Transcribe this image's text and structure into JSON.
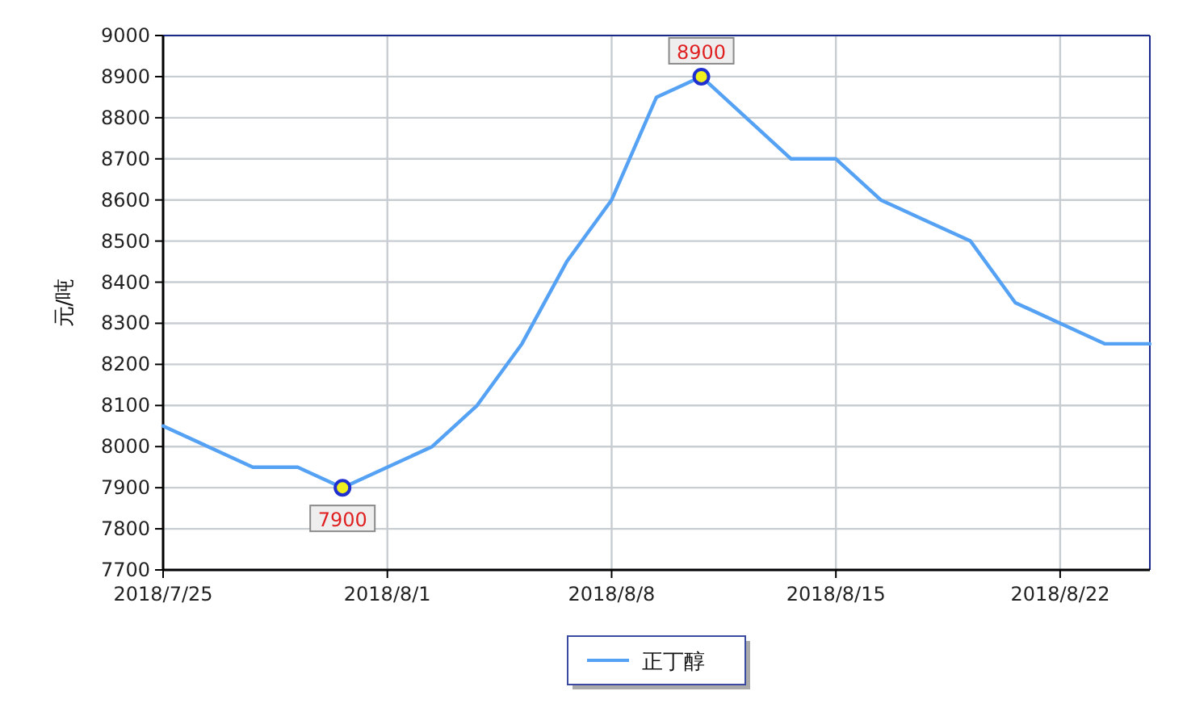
{
  "chart_data": {
    "type": "line",
    "ylabel": "元/吨",
    "categories": [
      "2018/7/25",
      null,
      null,
      null,
      null,
      "2018/8/1",
      null,
      null,
      null,
      null,
      "2018/8/8",
      null,
      null,
      null,
      null,
      "2018/8/15",
      null,
      null,
      null,
      null,
      "2018/8/22",
      null,
      null
    ],
    "series": [
      {
        "name": "正丁醇",
        "color": "#55a2f5",
        "values": [
          8050,
          8000,
          7950,
          7950,
          7900,
          7950,
          8000,
          8100,
          8250,
          8450,
          8600,
          8850,
          8900,
          8800,
          8700,
          8700,
          8600,
          8550,
          8500,
          8350,
          8300,
          8250,
          8250
        ]
      }
    ],
    "ylim": [
      7700,
      9000
    ],
    "yticks": [
      7700,
      7800,
      7900,
      8000,
      8100,
      8200,
      8300,
      8400,
      8500,
      8600,
      8700,
      8800,
      8900,
      9000
    ],
    "annotations": [
      {
        "text": "7900",
        "y": 7900
      },
      {
        "text": "8900",
        "y": 8900
      }
    ],
    "grid": true,
    "legend": "bottom",
    "marker": "none",
    "line_style": "solid"
  }
}
